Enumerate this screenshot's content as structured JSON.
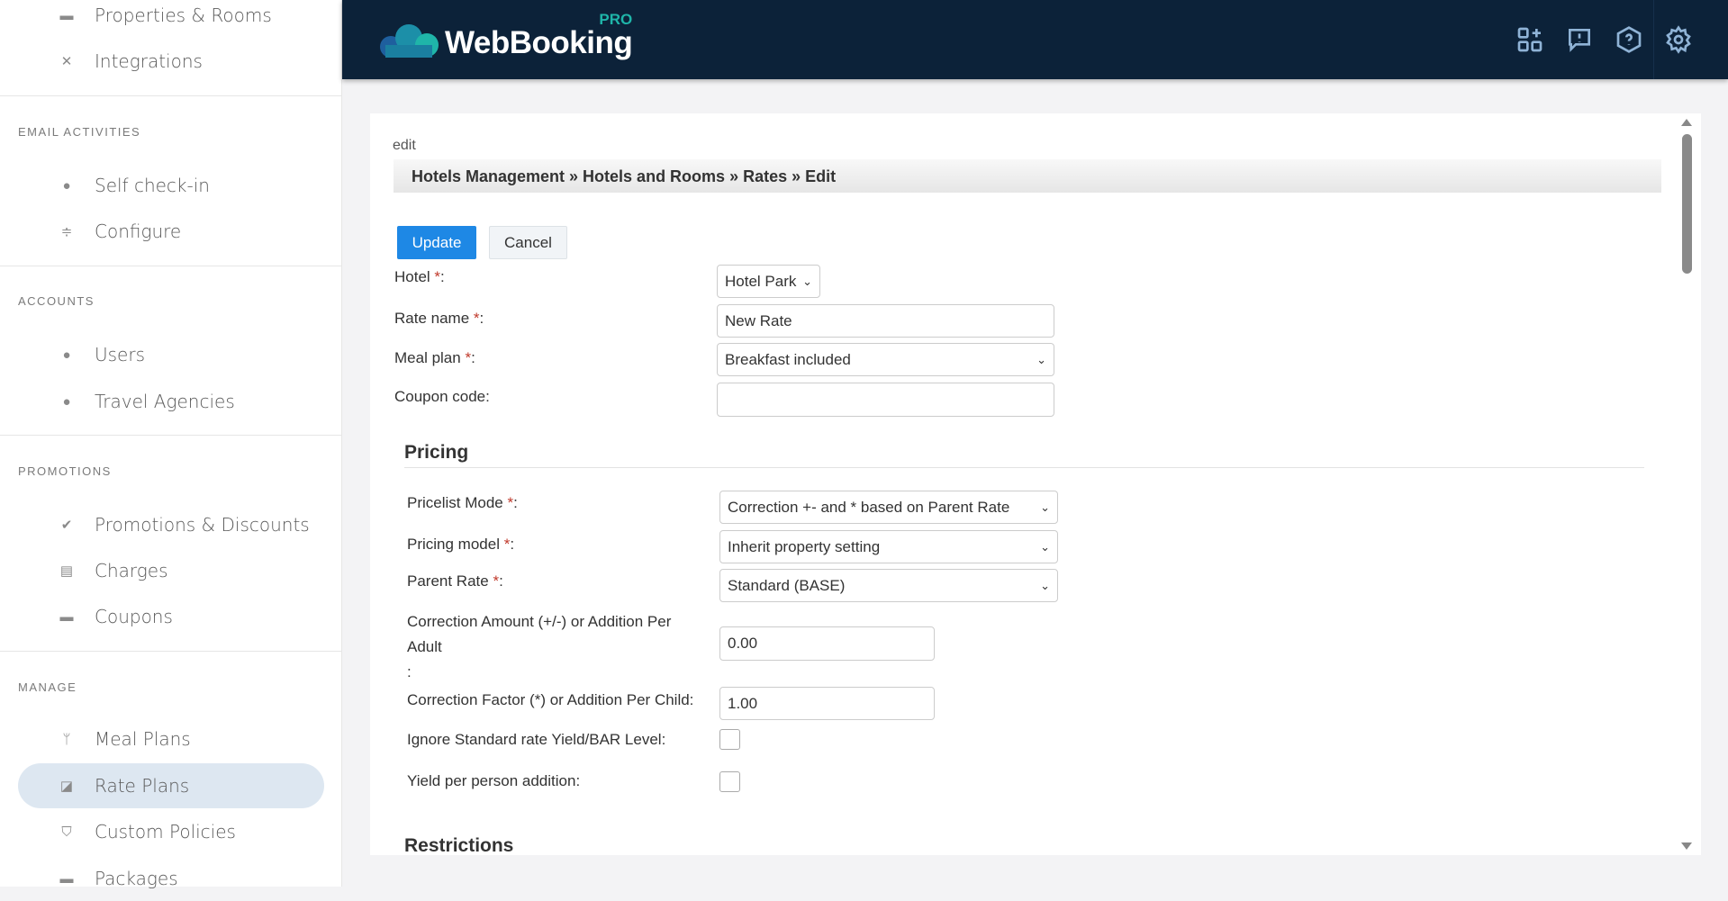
{
  "sidebar": {
    "items_top": [
      {
        "label": "Properties & Rooms",
        "icon": "bed-icon"
      },
      {
        "label": "Integrations",
        "icon": "integrations-icon"
      }
    ],
    "sections": [
      {
        "title": "EMAIL ACTIVITIES",
        "items": [
          {
            "label": "Self check-in",
            "icon": "user-check-icon"
          },
          {
            "label": "Configure",
            "icon": "sliders-icon"
          }
        ]
      },
      {
        "title": "ACCOUNTS",
        "items": [
          {
            "label": "Users",
            "icon": "users-icon"
          },
          {
            "label": "Travel Agencies",
            "icon": "users-icon"
          }
        ]
      },
      {
        "title": "PROMOTIONS",
        "items": [
          {
            "label": "Promotions & Discounts",
            "icon": "badge-check-icon"
          },
          {
            "label": "Charges",
            "icon": "receipt-icon"
          },
          {
            "label": "Coupons",
            "icon": "ticket-icon"
          }
        ]
      },
      {
        "title": "MANAGE",
        "items": [
          {
            "label": "Meal Plans",
            "icon": "utensils-icon"
          },
          {
            "label": "Rate Plans",
            "icon": "chart-icon",
            "active": true
          },
          {
            "label": "Custom Policies",
            "icon": "shield-icon"
          },
          {
            "label": "Packages",
            "icon": "package-icon"
          }
        ]
      }
    ]
  },
  "header": {
    "logo_text": "WebBooking",
    "logo_badge": "PRO",
    "icons": [
      "add-widget-icon",
      "feedback-icon",
      "help-icon",
      "settings-icon"
    ]
  },
  "page": {
    "caption": "edit",
    "breadcrumb": "Hotels Management » Hotels and Rooms » Rates » Edit",
    "update_label": "Update",
    "cancel_label": "Cancel",
    "hotel": {
      "label": "Hotel",
      "value": "Hotel Park"
    },
    "rate_name": {
      "label": "Rate name",
      "value": "New Rate"
    },
    "meal_plan": {
      "label": "Meal plan",
      "value": "Breakfast included"
    },
    "coupon": {
      "label": "Coupon code:",
      "value": ""
    },
    "pricing": {
      "title": "Pricing",
      "pricelist_mode": {
        "label": "Pricelist Mode",
        "value": "Correction +- and * based on Parent Rate"
      },
      "pricing_model": {
        "label": "Pricing model",
        "value": "Inherit property setting"
      },
      "parent_rate": {
        "label": "Parent Rate",
        "value": "Standard (BASE)"
      },
      "correction_amount": {
        "label_line1": "Correction Amount (+/-) or Addition Per",
        "label_line2": "Adult",
        "label_line3": ":",
        "value": "0.00"
      },
      "correction_factor": {
        "label": "Correction Factor (*) or Addition Per Child:",
        "value": "1.00"
      },
      "ignore_yield": {
        "label": "Ignore Standard rate Yield/BAR Level:",
        "checked": false
      },
      "yield_per_person": {
        "label": "Yield per person addition:",
        "checked": false
      }
    },
    "restrictions_title": "Restrictions"
  },
  "colors": {
    "header": "#0c2239",
    "primary": "#1e88e5",
    "active_nav": "#dde7f1",
    "logo_accent": "#1fb5a9"
  }
}
